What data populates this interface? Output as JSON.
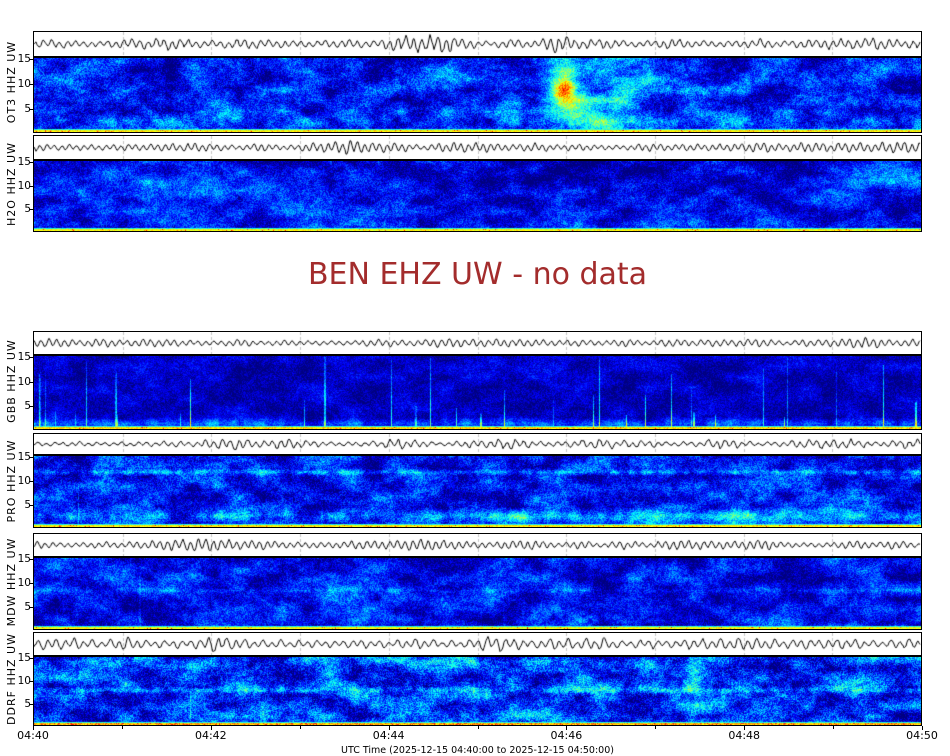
{
  "page": {
    "background": "#ffffff"
  },
  "title": {
    "text": "BEN EHZ UW - no data",
    "color": "#a32c2c"
  },
  "axis": {
    "x_tick_labels": [
      "04:40",
      "04:42",
      "04:44",
      "04:46",
      "04:48",
      "04:50"
    ],
    "x_axis_label": "UTC Time (2025-12-15 04:40:00 to 2025-12-15 04:50:00)",
    "y_tick_labels": [
      "15",
      "10",
      "5"
    ]
  },
  "colors": {
    "trace": "#000000",
    "gridline": "#c4c4c4",
    "spectrogram_palette": [
      "#000080",
      "#0000ff",
      "#00ccff",
      "#00ff99",
      "#ffff00",
      "#ff8800",
      "#ff0000"
    ],
    "title_red": "#a32c2c"
  },
  "chart_data": {
    "type": "heatmap",
    "subtype": "seismic station spectrograms, each with a waveform strip above (PNSN-style)",
    "x_range": [
      "2025-12-15 04:40:00 UTC",
      "2025-12-15 04:50:00 UTC"
    ],
    "x_tick_interval_minutes": 2,
    "minor_gridline_interval_minutes": 1,
    "y_axis": "frequency (Hz)",
    "y_range": [
      0,
      15.5
    ],
    "y_ticks": [
      15,
      10,
      5
    ],
    "missing_station": {
      "label": "BEN EHZ UW",
      "status": "no data"
    },
    "bottom_edge_note": "bright yellow-green intensity stripe along 0 Hz of every spectrogram",
    "panels": [
      {
        "station": "OT3 HHZ UW",
        "description": "mottled medium-blue spectrogram; bright cyan event plume ~04:45:50-04:46:40 spanning all frequencies with yellow-green hotspot",
        "seed": 11,
        "spec": {
          "base": 0.12,
          "mottle": 0.15,
          "fine": 0.1,
          "bands": [
            {
              "y": 0.85,
              "h": 0.15,
              "boost": 0.08,
              "patchy": 1
            }
          ],
          "blobs": [
            {
              "x": 0.6,
              "y": 0.38,
              "rx": 0.022,
              "ry": 0.5,
              "boost": 0.3
            },
            {
              "x": 0.635,
              "y": 0.78,
              "rx": 0.055,
              "ry": 0.28,
              "boost": 0.22
            },
            {
              "x": 0.598,
              "y": 0.42,
              "rx": 0.01,
              "ry": 0.14,
              "boost": 0.28
            },
            {
              "x": 0.66,
              "y": 0.3,
              "rx": 0.05,
              "ry": 0.35,
              "boost": 0.1
            }
          ],
          "spikes": {
            "count": 0,
            "boost": 0
          },
          "bottom": {
            "v": 0.64,
            "orange": 0.05
          }
        },
        "wave": {
          "a1": 5.5,
          "f1": 0.78,
          "a2": 2.2,
          "f2": 0.23,
          "nz": 1.6,
          "burst": 1.1
        }
      },
      {
        "station": "H2O HHZ UW",
        "description": "smoother dark blue; darker patch centre-top; brighter patches left ~10 Hz and right edge 12-15 Hz",
        "seed": 22,
        "spec": {
          "base": 0.1,
          "mottle": 0.12,
          "fine": 0.09,
          "bands": [
            {
              "y": 0.9,
              "h": 0.1,
              "boost": 0.05,
              "patchy": 1
            }
          ],
          "blobs": [
            {
              "x": 0.55,
              "y": 0.22,
              "rx": 0.2,
              "ry": 0.3,
              "boost": -0.07
            },
            {
              "x": 0.97,
              "y": 0.18,
              "rx": 0.05,
              "ry": 0.28,
              "boost": 0.16
            },
            {
              "x": 0.13,
              "y": 0.35,
              "rx": 0.1,
              "ry": 0.22,
              "boost": 0.1
            },
            {
              "x": 0.3,
              "y": 0.55,
              "rx": 0.12,
              "ry": 0.25,
              "boost": 0.05
            }
          ],
          "spikes": {
            "count": 0,
            "boost": 0
          },
          "bottom": {
            "v": 0.62,
            "orange": 0.04
          }
        },
        "wave": {
          "a1": 6.0,
          "f1": 0.85,
          "a2": 2.0,
          "f2": 0.31,
          "nz": 1.2,
          "burst": 0.8
        }
      },
      {
        "station": "GBB HHZ UW",
        "description": "very dark navy; many narrow vertical cyan spikes (impulsive arrivals) rising from 0 Hz, some to 15 Hz; textured bright band below 2 Hz",
        "seed": 33,
        "spec": {
          "base": 0.05,
          "mottle": 0.07,
          "fine": 0.07,
          "bands": [
            {
              "y": 0.92,
              "h": 0.09,
              "boost": 0.22,
              "patchy": 1
            }
          ],
          "blobs": [],
          "spikes": {
            "count": 34,
            "boost": 0.4
          },
          "bottom": {
            "v": 0.66,
            "orange": 0.06
          }
        },
        "wave": {
          "a1": 5.0,
          "f1": 0.8,
          "a2": 1.5,
          "f2": 0.27,
          "nz": 1.1,
          "burst": 0.7
        }
      },
      {
        "station": "PRO HHZ UW",
        "description": "mottled blue; patchy horizontal cyan band near 12 Hz across full width; brighter cyan patches below 3 Hz, strongest in right half",
        "seed": 44,
        "spec": {
          "base": 0.11,
          "mottle": 0.14,
          "fine": 0.1,
          "bands": [
            {
              "y": 0.22,
              "h": 0.05,
              "boost": 0.2,
              "patchy": 1
            },
            {
              "y": 0.84,
              "h": 0.13,
              "boost": 0.16,
              "patchy": 1
            }
          ],
          "blobs": [
            {
              "x": 0.78,
              "y": 0.85,
              "rx": 0.18,
              "ry": 0.12,
              "boost": 0.1
            }
          ],
          "spikes": {
            "count": 3,
            "boost": 0.12
          },
          "bottom": {
            "v": 0.64,
            "orange": 0.05
          }
        },
        "wave": {
          "a1": 4.0,
          "f1": 0.75,
          "a2": 1.8,
          "f2": 0.3,
          "nz": 1.3,
          "burst": 0.9
        }
      },
      {
        "station": "MDW HHZ UW",
        "description": "mottled medium blue with faint vertical streaking and faint horizontal band near 8 Hz",
        "seed": 55,
        "spec": {
          "base": 0.1,
          "mottle": 0.13,
          "fine": 0.09,
          "bands": [
            {
              "y": 0.45,
              "h": 0.05,
              "boost": 0.08,
              "patchy": 1
            }
          ],
          "blobs": [
            {
              "x": 0.68,
              "y": 0.25,
              "rx": 0.015,
              "ry": 0.3,
              "boost": 0.1
            }
          ],
          "spikes": {
            "count": 4,
            "boost": 0.1
          },
          "bottom": {
            "v": 0.62,
            "orange": 0.05
          }
        },
        "wave": {
          "a1": 5.5,
          "f1": 0.82,
          "a2": 1.6,
          "f2": 0.26,
          "nz": 1.2,
          "burst": 0.8
        }
      },
      {
        "station": "DDRF HHZ UW",
        "description": "brightest, heavily mottled blue/cyan; dashed cyan band near 8 Hz; brighter texture 12-15 Hz; orange-red flecks along bottom stripe",
        "seed": 66,
        "spec": {
          "base": 0.15,
          "mottle": 0.17,
          "fine": 0.12,
          "bands": [
            {
              "y": 0.48,
              "h": 0.06,
              "boost": 0.18,
              "patchy": 1
            },
            {
              "y": 0.06,
              "h": 0.12,
              "boost": 0.08,
              "patchy": 1
            }
          ],
          "blobs": [
            {
              "x": 0.745,
              "y": 0.25,
              "rx": 0.012,
              "ry": 0.35,
              "boost": 0.18
            }
          ],
          "spikes": {
            "count": 2,
            "boost": 0.12
          },
          "bottom": {
            "v": 0.68,
            "orange": 0.25
          }
        },
        "wave": {
          "a1": 5.5,
          "f1": 0.7,
          "a2": 2.4,
          "f2": 0.33,
          "nz": 1.5,
          "burst": 1.0
        }
      }
    ]
  }
}
